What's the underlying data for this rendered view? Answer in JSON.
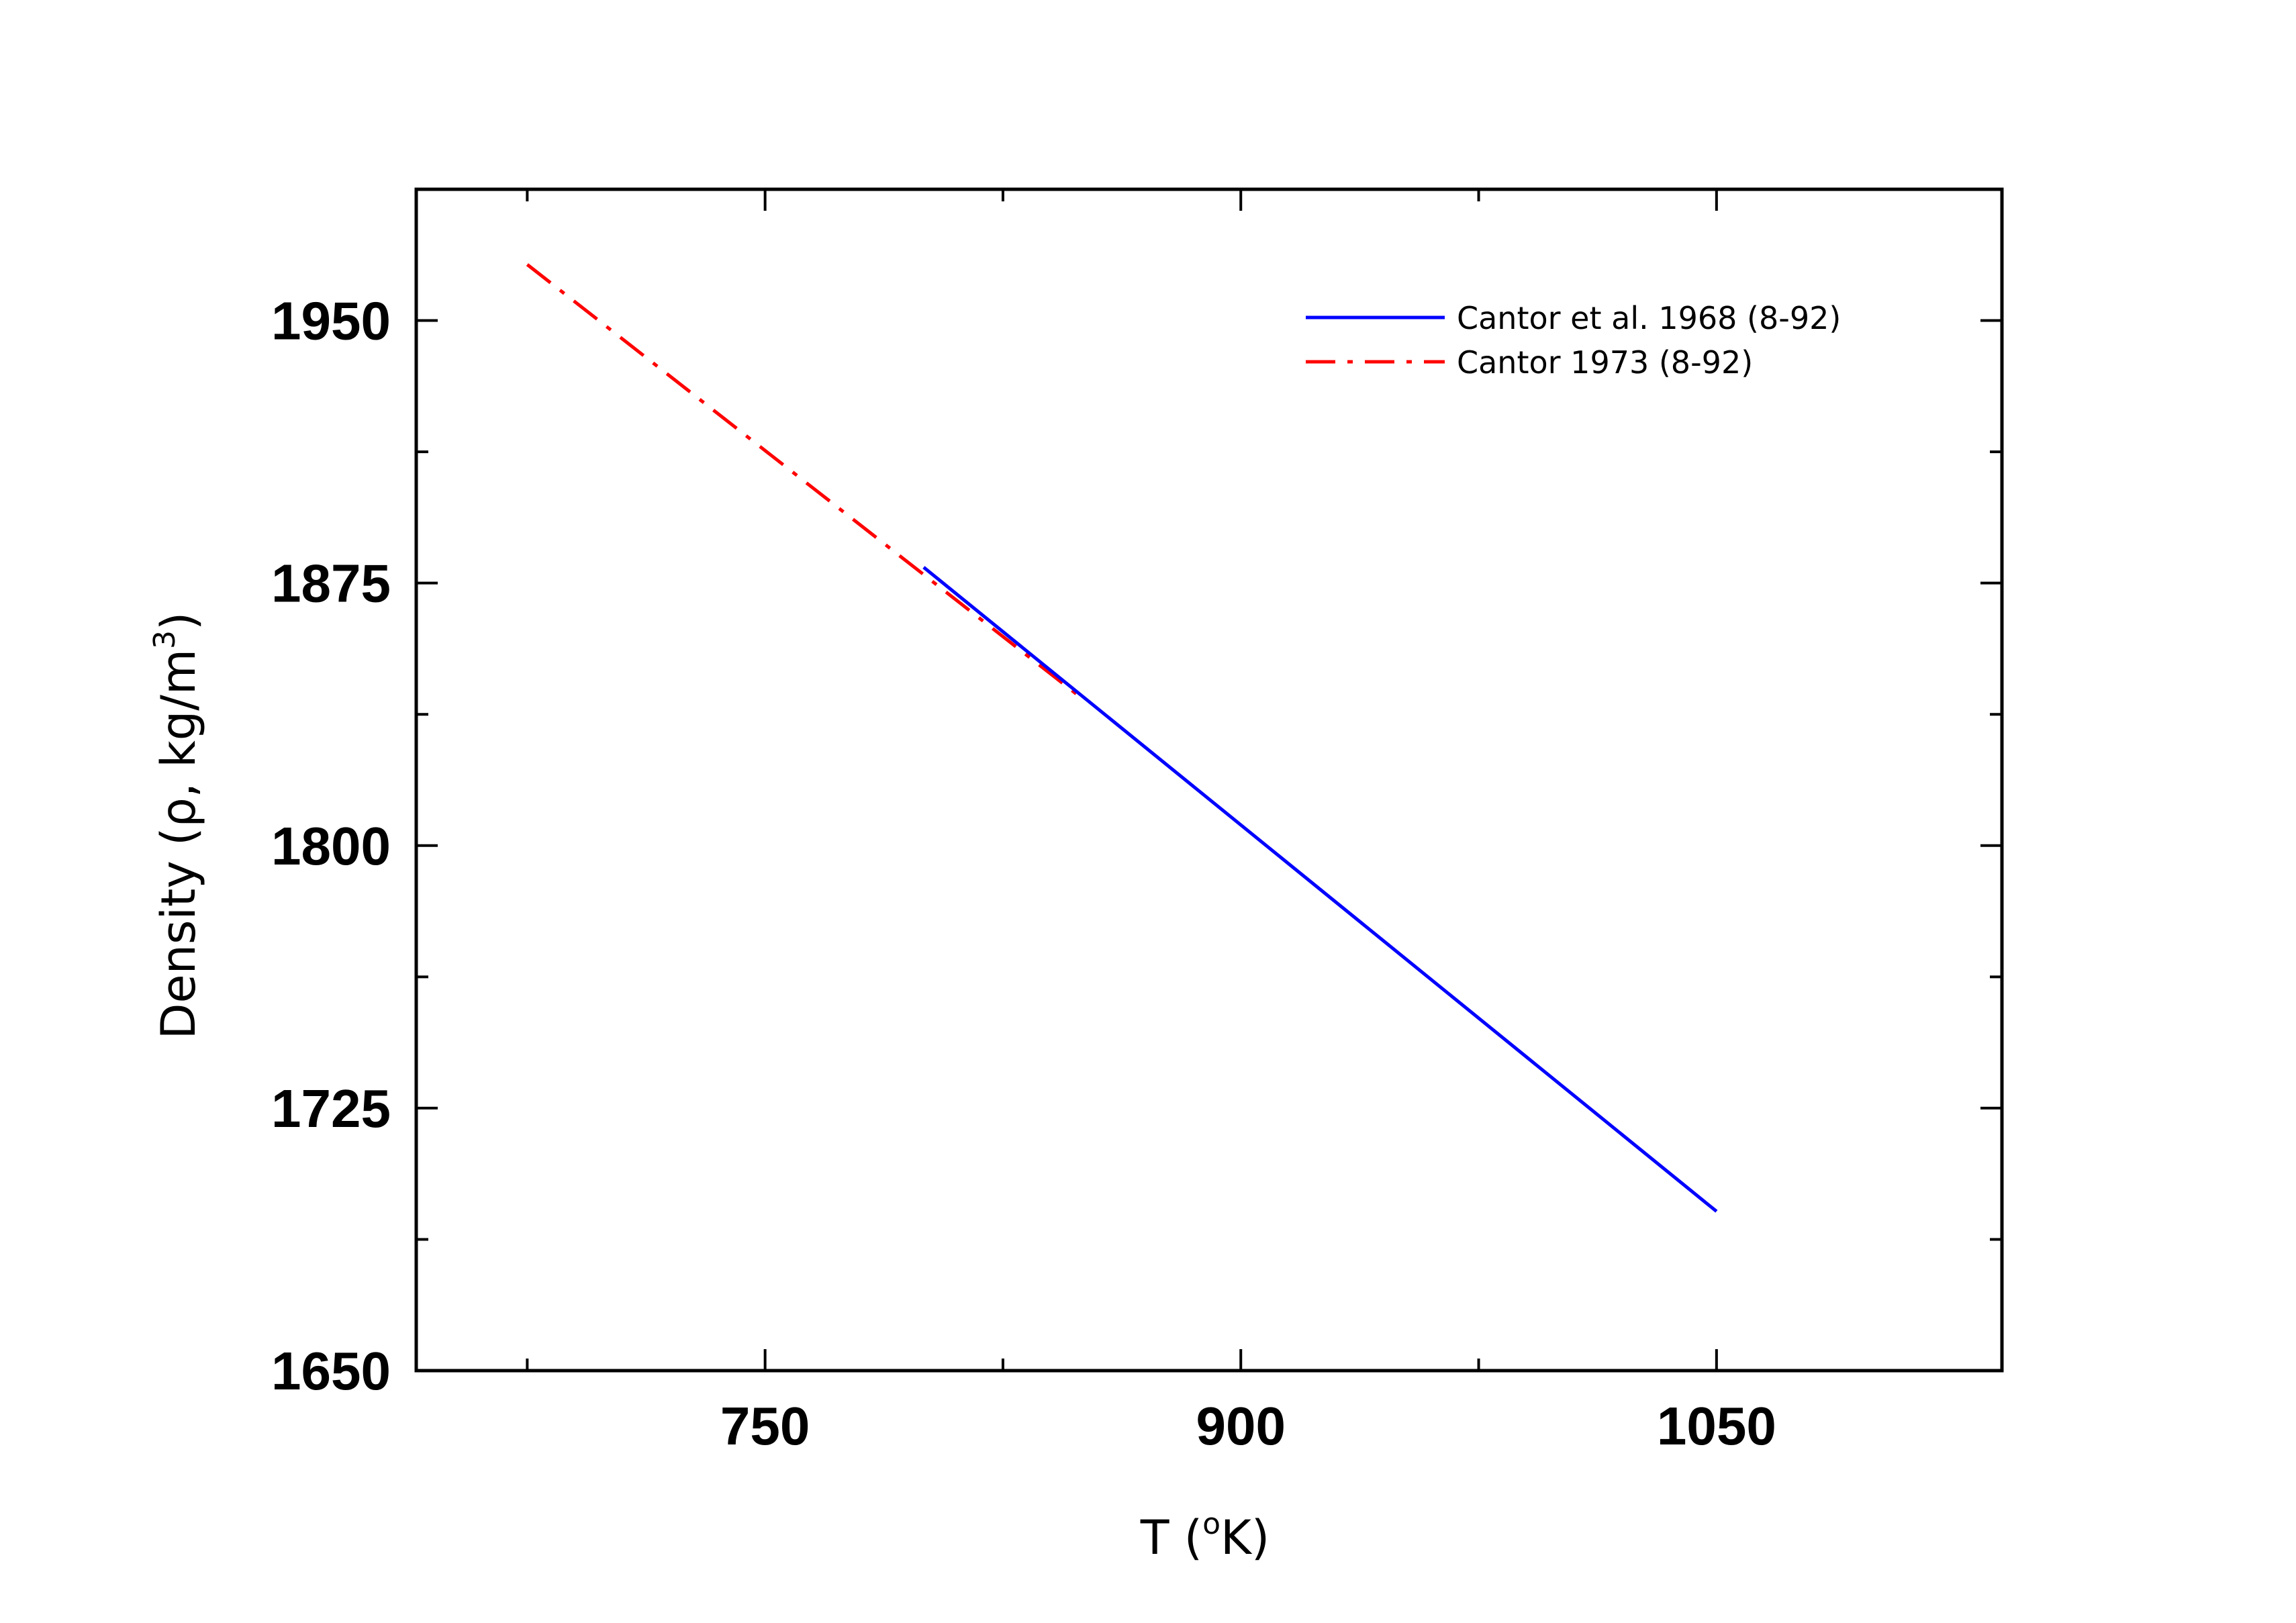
{
  "chart_data": {
    "type": "line",
    "xlabel": {
      "main": "T (",
      "sup": "o",
      "tail": "K)"
    },
    "ylabel": {
      "main": "Density (ρ, kg/m",
      "sup": "3",
      "tail": ")"
    },
    "xlim": [
      640,
      1140
    ],
    "ylim": [
      1650,
      1987.5
    ],
    "x_ticks": [
      {
        "value": 750,
        "label": "750"
      },
      {
        "value": 900,
        "label": "900"
      },
      {
        "value": 1050,
        "label": "1050"
      }
    ],
    "x_minor_ticks": [
      675,
      825,
      975
    ],
    "y_ticks": [
      {
        "value": 1650,
        "label": "1650"
      },
      {
        "value": 1725,
        "label": "1725"
      },
      {
        "value": 1800,
        "label": "1800"
      },
      {
        "value": 1875,
        "label": "1875"
      },
      {
        "value": 1950,
        "label": "1950"
      }
    ],
    "y_minor_ticks": [
      1687.5,
      1762.5,
      1837.5,
      1912.5
    ],
    "grid": false,
    "legend_position": "top-right",
    "series": [
      {
        "name": "Cantor et al. 1968 (8-92)",
        "color": "#0000ff",
        "style": "solid",
        "x": [
          800,
          1050
        ],
        "y": [
          1879.5,
          1695.5
        ]
      },
      {
        "name": "Cantor 1973 (8-92)",
        "color": "#ff0000",
        "style": "dash-dot",
        "x": [
          675,
          850
        ],
        "y": [
          1966,
          1842
        ]
      }
    ]
  }
}
